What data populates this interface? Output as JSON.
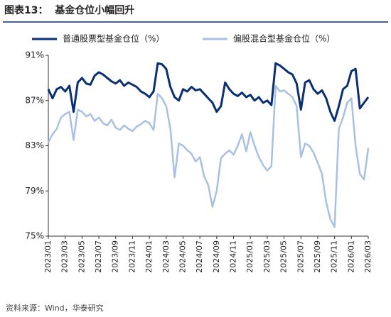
{
  "chart_data": {
    "type": "line",
    "title": "图表13：  基金仓位小幅回升",
    "source": "资料来源：Wind，华泰研究",
    "categories": [
      "2023/01",
      null,
      null,
      null,
      "2023/03",
      null,
      null,
      null,
      "2023/05",
      null,
      null,
      null,
      "2023/07",
      null,
      null,
      null,
      "2023/09",
      null,
      null,
      null,
      "2023/11",
      null,
      null,
      null,
      "2024/01",
      null,
      null,
      null,
      "2024/03",
      null,
      null,
      null,
      "2024/05",
      null,
      null,
      null,
      "2024/07",
      null,
      null,
      null,
      "2024/09",
      null,
      null,
      null,
      "2024/11",
      null,
      null,
      null,
      "2025/01",
      null,
      null,
      null,
      "2025/03",
      null,
      null,
      null,
      "2025/05",
      null,
      null,
      null,
      "2025/07",
      null,
      null,
      null,
      "2025/09",
      null,
      null,
      null,
      "2025/11",
      null,
      null,
      null,
      "2026/01",
      null,
      null,
      null,
      "2026/03"
    ],
    "series": [
      {
        "name": "普通股票型基金仓位（%）",
        "color": "#0b2f73",
        "values": [
          88.0,
          87.2,
          88.0,
          88.2,
          87.8,
          88.3,
          86.0,
          88.6,
          89.0,
          88.5,
          88.4,
          89.2,
          89.5,
          89.3,
          89.0,
          88.7,
          88.5,
          88.8,
          88.3,
          88.6,
          88.4,
          88.2,
          87.8,
          87.6,
          87.3,
          87.8,
          90.3,
          90.2,
          89.8,
          88.2,
          87.3,
          87.0,
          88.0,
          87.8,
          88.2,
          87.9,
          88.0,
          87.6,
          87.2,
          86.8,
          86.0,
          86.5,
          88.6,
          88.0,
          87.6,
          87.4,
          87.7,
          87.3,
          87.5,
          87.0,
          87.3,
          86.8,
          87.0,
          86.6,
          90.3,
          90.1,
          89.8,
          89.5,
          89.3,
          88.5,
          86.2,
          88.6,
          88.8,
          88.0,
          87.6,
          87.9,
          87.2,
          86.0,
          85.2,
          86.5,
          88.0,
          88.3,
          89.6,
          89.8,
          86.3,
          86.8,
          87.3
        ]
      },
      {
        "name": "偏股混合型基金仓位（%）",
        "color": "#a9c0e3",
        "values": [
          83.3,
          84.0,
          84.5,
          85.5,
          85.8,
          86.0,
          83.5,
          86.2,
          86.0,
          85.6,
          85.8,
          85.2,
          85.5,
          85.0,
          84.8,
          85.3,
          84.6,
          84.4,
          84.8,
          84.5,
          84.3,
          84.7,
          84.9,
          85.2,
          85.0,
          84.4,
          87.6,
          87.2,
          86.5,
          84.5,
          80.2,
          83.2,
          83.0,
          82.6,
          82.3,
          81.6,
          82.0,
          80.3,
          79.5,
          77.6,
          79.0,
          81.9,
          82.3,
          82.6,
          82.2,
          83.0,
          84.0,
          82.5,
          84.2,
          83.0,
          82.0,
          81.3,
          80.8,
          81.2,
          88.3,
          87.8,
          87.9,
          87.6,
          87.3,
          86.5,
          82.0,
          83.2,
          83.0,
          82.4,
          81.5,
          80.5,
          78.0,
          76.5,
          75.8,
          84.5,
          85.5,
          86.8,
          87.2,
          83.0,
          80.5,
          80.0,
          82.8
        ]
      }
    ],
    "ylim": [
      75,
      91
    ],
    "yticks": [
      {
        "value": 75,
        "label": "75%"
      },
      {
        "value": 79,
        "label": "79%"
      },
      {
        "value": 83,
        "label": "83%"
      },
      {
        "value": 87,
        "label": "87%"
      },
      {
        "value": 91,
        "label": "91%"
      }
    ],
    "grid": false
  }
}
